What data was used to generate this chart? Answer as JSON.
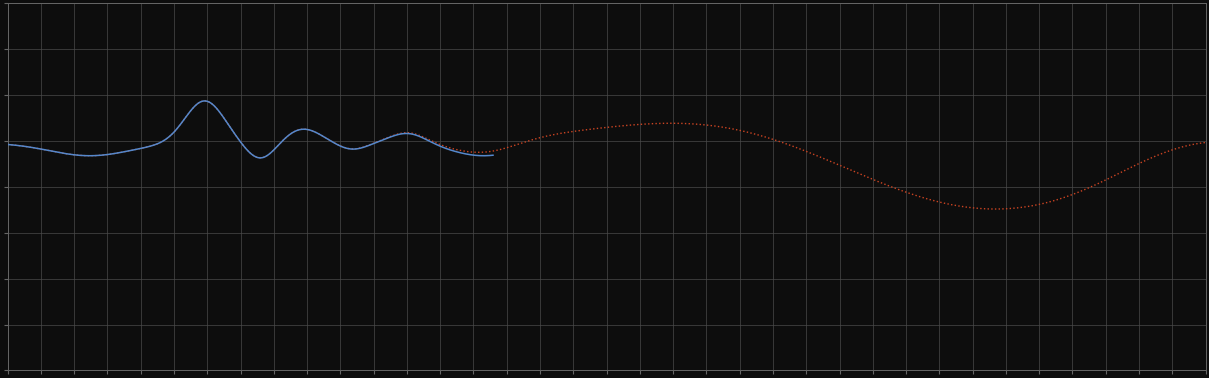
{
  "background_color": "#0d0d0d",
  "plot_background_color": "#0d0d0d",
  "grid_color": "#4a4a4a",
  "grid_linewidth": 0.5,
  "line1_color": "#5588cc",
  "line2_color": "#cc4422",
  "line1_linewidth": 1.1,
  "line2_linewidth": 1.0,
  "axis_color": "#666666",
  "tick_color": "#666666",
  "figsize": [
    12.09,
    3.78
  ],
  "dpi": 100,
  "xlim": [
    0,
    365
  ],
  "ylim": [
    0,
    10
  ],
  "n_xgrid": 36,
  "n_ygrid": 8
}
